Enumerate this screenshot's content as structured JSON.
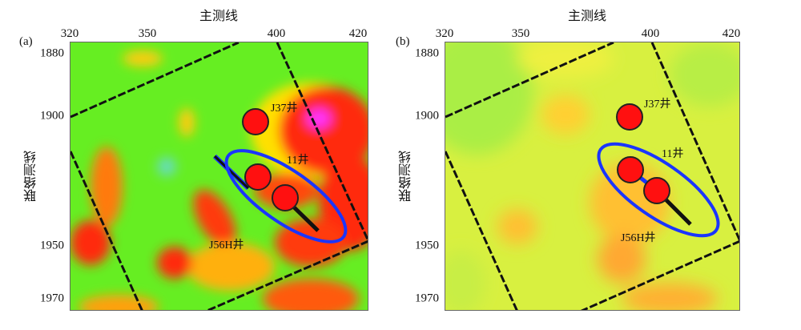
{
  "panels": [
    {
      "id": "(a)",
      "x_axis_title": "主测线",
      "y_axis_title": "联络测线",
      "x_ticks": [
        "320",
        "350",
        "400",
        "420"
      ],
      "y_ticks": [
        "1880",
        "1900",
        "1950",
        "1970"
      ],
      "wells": [
        "J37井",
        "11井",
        "J56H井"
      ]
    },
    {
      "id": "(b)",
      "x_axis_title": "主测线",
      "y_axis_title": "联络测线",
      "x_ticks": [
        "320",
        "350",
        "400",
        "420"
      ],
      "y_ticks": [
        "1880",
        "1900",
        "1950",
        "1970"
      ],
      "wells": [
        "J37井",
        "11井",
        "J56H井"
      ]
    }
  ],
  "colors": {
    "well": "#ff1010",
    "ellipse": "#1a35ff",
    "green": "#66ee22",
    "yellow": "#e8f040",
    "red": "#ff2a10",
    "magenta": "#ff30ff"
  }
}
